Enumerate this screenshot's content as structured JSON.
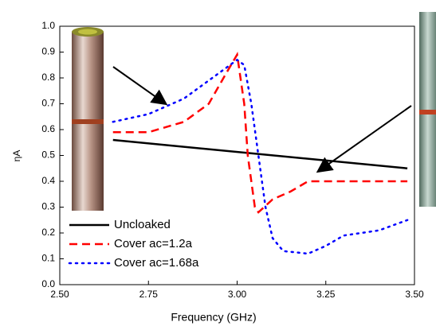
{
  "chart_data": {
    "type": "line",
    "xlabel": "Frequency (GHz)",
    "ylabel": "ηA",
    "xlim": [
      2.5,
      3.5
    ],
    "ylim": [
      0,
      1.0
    ],
    "xticks": [
      {
        "value": 2.5,
        "label": "2.50"
      },
      {
        "value": 2.75,
        "label": "2.75"
      },
      {
        "value": 3.0,
        "label": "3.00"
      },
      {
        "value": 3.25,
        "label": "3.25"
      },
      {
        "value": 3.5,
        "label": "3.50"
      }
    ],
    "yticks": [
      {
        "value": 0,
        "label": "0.0"
      },
      {
        "value": 0.1,
        "label": "0.1"
      },
      {
        "value": 0.2,
        "label": "0.2"
      },
      {
        "value": 0.3,
        "label": "0.3"
      },
      {
        "value": 0.4,
        "label": "0.4"
      },
      {
        "value": 0.5,
        "label": "0.5"
      },
      {
        "value": 0.6,
        "label": "0.6"
      },
      {
        "value": 0.7,
        "label": "0.7"
      },
      {
        "value": 0.8,
        "label": "0.8"
      },
      {
        "value": 0.9,
        "label": "0.9"
      },
      {
        "value": 1.0,
        "label": "1.0"
      }
    ],
    "legend": "lower-left",
    "series": [
      {
        "name": "Uncloaked",
        "color": "#000000",
        "style": "solid",
        "x": [
          2.65,
          3.48
        ],
        "values": [
          0.56,
          0.45
        ]
      },
      {
        "name": "Cover ac=1.2a",
        "color": "#ff0000",
        "style": "dashed",
        "x": [
          2.65,
          2.75,
          2.85,
          2.92,
          2.97,
          3.0,
          3.02,
          3.03,
          3.05,
          3.06,
          3.1,
          3.15,
          3.2,
          3.25,
          3.35,
          3.48
        ],
        "values": [
          0.59,
          0.59,
          0.63,
          0.7,
          0.82,
          0.89,
          0.7,
          0.5,
          0.3,
          0.28,
          0.33,
          0.36,
          0.4,
          0.4,
          0.4,
          0.4
        ]
      },
      {
        "name": "Cover ac=1.68a",
        "color": "#0000ff",
        "style": "dotted",
        "x": [
          2.65,
          2.75,
          2.85,
          2.92,
          2.98,
          3.0,
          3.02,
          3.04,
          3.06,
          3.08,
          3.1,
          3.13,
          3.2,
          3.25,
          3.3,
          3.4,
          3.48
        ],
        "values": [
          0.63,
          0.66,
          0.72,
          0.79,
          0.85,
          0.87,
          0.85,
          0.7,
          0.5,
          0.3,
          0.18,
          0.13,
          0.12,
          0.15,
          0.19,
          0.21,
          0.25
        ]
      }
    ]
  }
}
